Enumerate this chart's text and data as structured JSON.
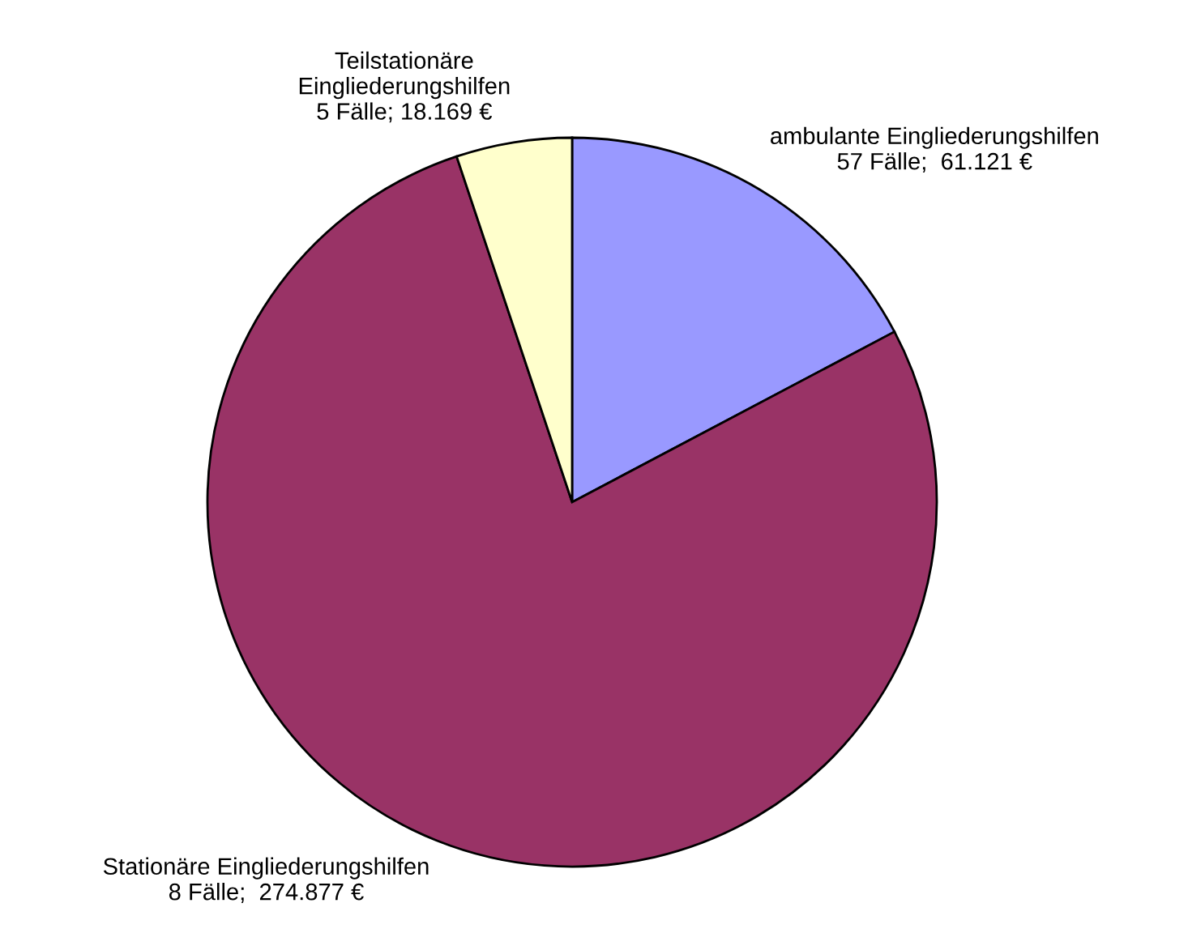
{
  "chart_data": {
    "type": "pie",
    "categories": [
      "ambulante Eingliederungshilfen",
      "Stationäre Eingliederungshilfen",
      "Teilstationäre\nEingliederungshilfen"
    ],
    "values": [
      61121,
      274877,
      18169
    ],
    "value_labels": [
      "57 Fälle;  61.121 €",
      "8 Fälle;  274.877 €",
      "5 Fälle; 18.169 €"
    ],
    "colors": [
      "#9999ff",
      "#993366",
      "#ffffcc"
    ],
    "legend": false
  }
}
